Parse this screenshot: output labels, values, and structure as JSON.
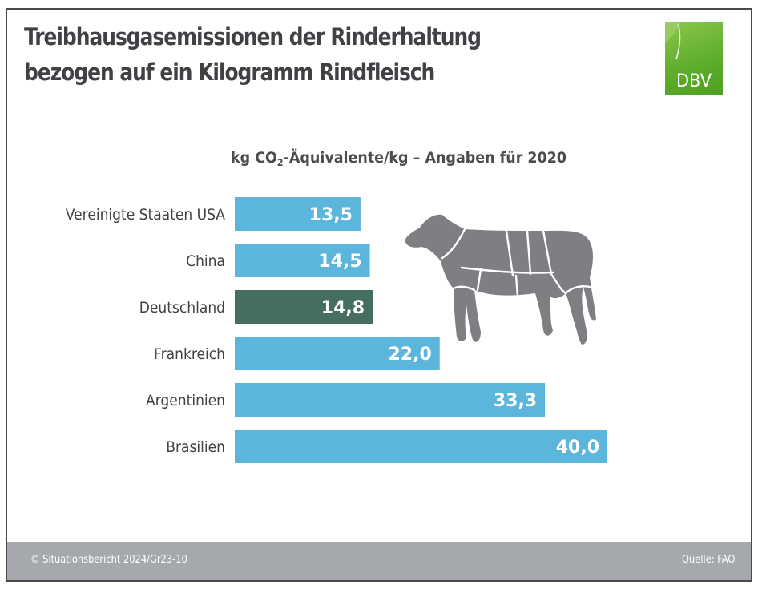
{
  "header": {
    "title_line1": "Treibhausgasemissionen der Rinderhaltung",
    "title_line2": "bezogen auf ein Kilogramm Rindfleisch",
    "logo_text": "DBV"
  },
  "colors": {
    "bar_default": "#5cb6dc",
    "bar_highlight": "#456e5f",
    "label_text": "#3f4144",
    "value_text": "#ffffff",
    "cow": "#7d7f82",
    "footer_bg": "#a5a9ae",
    "logo_green": "#5fae2c"
  },
  "chart_data": {
    "type": "bar",
    "orientation": "horizontal",
    "title": "kg CO2-Äquivalente/kg – Angaben für 2020",
    "subtitle_parts": {
      "pre": "kg CO",
      "sub": "2",
      "post": "-Äquivalente/kg – Angaben für 2020"
    },
    "categories": [
      "Vereinigte Staaten USA",
      "China",
      "Deutschland",
      "Frankreich",
      "Argentinien",
      "Brasilien"
    ],
    "values": [
      13.5,
      14.5,
      14.8,
      22.0,
      33.3,
      40.0
    ],
    "value_labels": [
      "13,5",
      "14,5",
      "14,8",
      "22,0",
      "33,3",
      "40,0"
    ],
    "highlight": "Deutschland",
    "xlabel": "",
    "ylabel": "",
    "xlim": [
      0,
      40
    ],
    "grid": false,
    "legend": "none"
  },
  "footer": {
    "copyright": "© Situationsbericht 2024/Gr23-10",
    "source": "Quelle: FAO"
  }
}
